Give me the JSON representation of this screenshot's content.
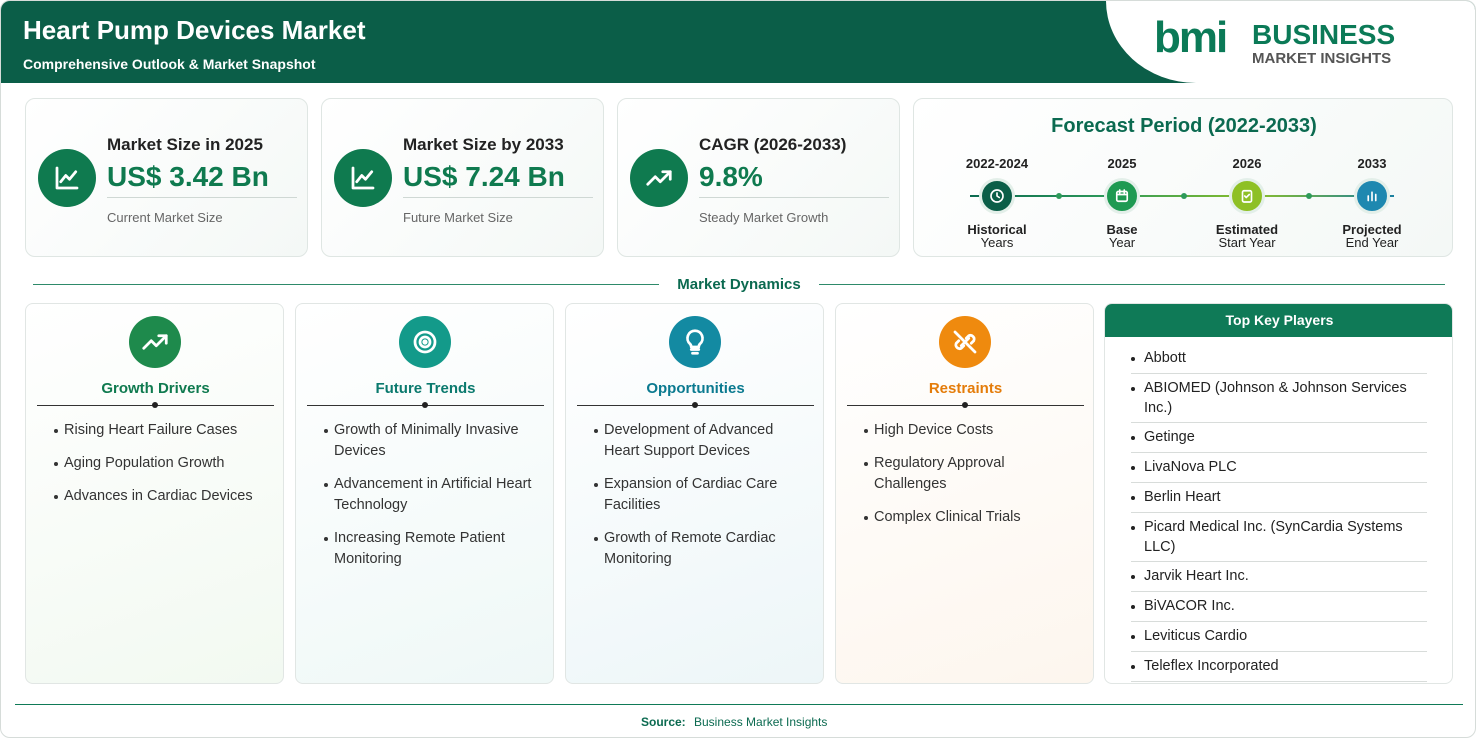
{
  "header": {
    "title": "Heart Pump Devices Market",
    "subtitle": "Comprehensive Outlook & Market Snapshot",
    "logo": {
      "mark": "bmi",
      "line1": "BUSINESS",
      "line2": "MARKET INSIGHTS"
    }
  },
  "stats": [
    {
      "label": "Market Size in 2025",
      "value": "US$ 3.42 Bn",
      "note": "Current Market Size"
    },
    {
      "label": "Market Size by 2033",
      "value": "US$ 7.24 Bn",
      "note": "Future Market Size"
    },
    {
      "label": "CAGR (2026-2033)",
      "value": "9.8%",
      "note": "Steady Market Growth"
    }
  ],
  "forecast": {
    "title": "Forecast Period (2022-2033)",
    "steps": [
      {
        "period": "2022-2024",
        "lines": [
          "Historical",
          "Years"
        ]
      },
      {
        "period": "2025",
        "lines": [
          "Base",
          "Year"
        ]
      },
      {
        "period": "2026",
        "lines": [
          "Estimated",
          "Start Year"
        ]
      },
      {
        "period": "2033",
        "lines": [
          "Projected",
          "End Year"
        ]
      }
    ]
  },
  "dynamics": {
    "title": "Market Dynamics",
    "columns": [
      {
        "title": "Growth Drivers",
        "items": [
          "Rising Heart Failure Cases",
          "Aging Population Growth",
          "Advances in Cardiac Devices"
        ]
      },
      {
        "title": "Future Trends",
        "items": [
          "Growth of Minimally Invasive Devices",
          "Advancement in Artificial Heart Technology",
          "Increasing Remote Patient Monitoring"
        ]
      },
      {
        "title": "Opportunities",
        "items": [
          "Development of Advanced Heart Support Devices",
          "Expansion of Cardiac Care Facilities",
          "Growth of Remote Cardiac Monitoring"
        ]
      },
      {
        "title": "Restraints",
        "items": [
          "High Device Costs",
          "Regulatory Approval Challenges",
          "Complex Clinical Trials"
        ]
      }
    ]
  },
  "players": {
    "title": "Top Key Players",
    "items": [
      "Abbott",
      "ABIOMED (Johnson & Johnson Services Inc.)",
      "Getinge",
      "LivaNova PLC",
      "Berlin Heart",
      "Picard Medical Inc. (SynCardia Systems LLC)",
      "Jarvik Heart Inc.",
      "BiVACOR Inc.",
      "Leviticus Cardio",
      "Teleflex Incorporated"
    ]
  },
  "footer": {
    "label": "Source:",
    "text": "Business Market Insights"
  }
}
